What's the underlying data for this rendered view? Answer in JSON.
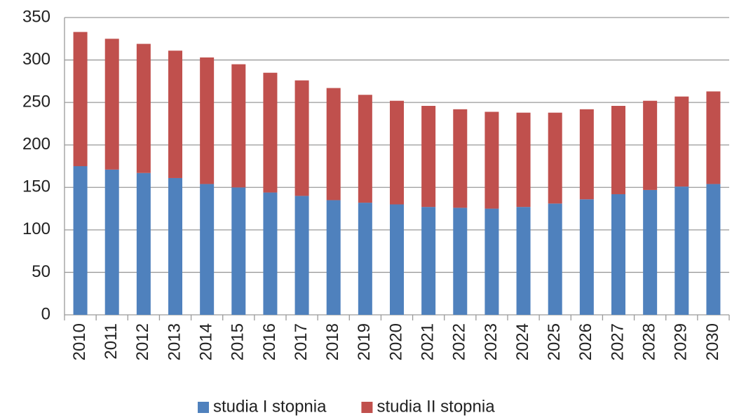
{
  "chart_data": {
    "type": "stacked-bar",
    "categories": [
      "2010",
      "2011",
      "2012",
      "2013",
      "2014",
      "2015",
      "2016",
      "2017",
      "2018",
      "2019",
      "2020",
      "2021",
      "2022",
      "2023",
      "2024",
      "2025",
      "2026",
      "2027",
      "2028",
      "2029",
      "2030"
    ],
    "series": [
      {
        "name": "studia I stopnia",
        "color": "#4f81bd",
        "values": [
          175,
          171,
          167,
          161,
          154,
          150,
          144,
          140,
          135,
          132,
          130,
          127,
          126,
          125,
          127,
          131,
          136,
          142,
          147,
          151,
          154
        ]
      },
      {
        "name": "studia II stopnia",
        "color": "#c0504d",
        "values": [
          158,
          154,
          152,
          150,
          149,
          145,
          141,
          136,
          132,
          127,
          122,
          119,
          116,
          114,
          111,
          107,
          106,
          104,
          105,
          106,
          109
        ]
      }
    ],
    "ylim": [
      0,
      350
    ],
    "yticks": [
      0,
      50,
      100,
      150,
      200,
      250,
      300,
      350
    ],
    "grid": true,
    "legend": "bottom"
  }
}
